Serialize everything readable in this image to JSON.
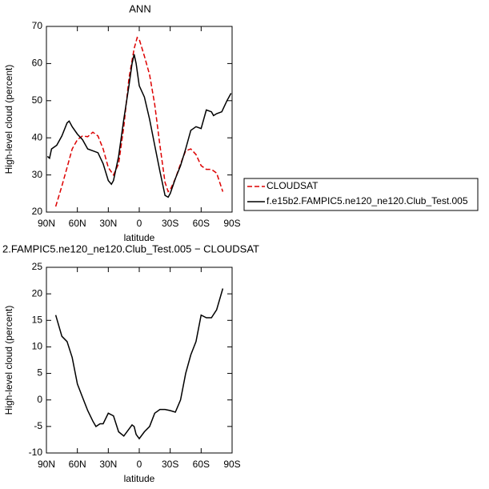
{
  "chart_data": [
    {
      "type": "line",
      "title": "ANN",
      "x_label": "latitude",
      "y_label": "High-level cloud (percent)",
      "xlim": [
        90,
        -90
      ],
      "xticks": [
        {
          "value": 90,
          "label": "90N"
        },
        {
          "value": 60,
          "label": "60N"
        },
        {
          "value": 30,
          "label": "30N"
        },
        0,
        {
          "value": -30,
          "label": "30S"
        },
        {
          "value": -60,
          "label": "60S"
        },
        {
          "value": -90,
          "label": "90S"
        }
      ],
      "ylim": [
        20,
        70
      ],
      "yticks": [
        20,
        30,
        40,
        50,
        60,
        70
      ],
      "legend": "right",
      "series": [
        {
          "name": "CLOUDSAT",
          "color": "#dd0000",
          "dash": true,
          "x": [
            81,
            75,
            70,
            65,
            60,
            55,
            50,
            45,
            40,
            35,
            30,
            25,
            20,
            15,
            10,
            5,
            2,
            0,
            -5,
            -10,
            -15,
            -20,
            -25,
            -28,
            -30,
            -35,
            -40,
            -45,
            -50,
            -55,
            -60,
            -65,
            -70,
            -75,
            -81
          ],
          "values": [
            21.5,
            27,
            32,
            37,
            39.5,
            40.5,
            40.3,
            41.5,
            40.5,
            37,
            32,
            30,
            33,
            43,
            56,
            64,
            67,
            66.5,
            62,
            57,
            49,
            38,
            28,
            25.5,
            26,
            29,
            33,
            36.5,
            37,
            35.5,
            32.5,
            31.5,
            31.5,
            30.5,
            25.5
          ]
        },
        {
          "name": "f.e15b2.FAMPIC5.ne120_ne120.Club_Test.005",
          "color": "#000000",
          "dash": false,
          "x": [
            89,
            87,
            85,
            80,
            75,
            70,
            68,
            65,
            60,
            55,
            50,
            45,
            40,
            35,
            30,
            27,
            25,
            20,
            15,
            10,
            7,
            5,
            3,
            0,
            -5,
            -10,
            -15,
            -20,
            -25,
            -28,
            -30,
            -35,
            -40,
            -45,
            -50,
            -55,
            -60,
            -65,
            -70,
            -72,
            -75,
            -80,
            -85,
            -89
          ],
          "values": [
            35,
            34.5,
            37,
            38,
            40.5,
            44,
            44.5,
            43,
            41,
            39.5,
            37,
            36.5,
            36,
            33,
            28.5,
            27.5,
            28.5,
            35,
            45,
            54,
            60,
            62.5,
            60,
            54,
            51,
            45,
            38,
            31,
            24.5,
            24,
            25,
            29,
            32.5,
            37,
            42,
            43,
            42.5,
            47.5,
            47,
            46,
            46.5,
            47,
            50,
            52
          ]
        }
      ]
    },
    {
      "type": "line",
      "title": "2.FAMPIC5.ne120_ne120.Club_Test.005 − CLOUDSAT",
      "x_label": "latitude",
      "y_label": "High-level cloud (percent)",
      "xlim": [
        90,
        -90
      ],
      "xticks": [
        {
          "value": 90,
          "label": "90N"
        },
        {
          "value": 60,
          "label": "60N"
        },
        {
          "value": 30,
          "label": "30N"
        },
        0,
        {
          "value": -30,
          "label": "30S"
        },
        {
          "value": -60,
          "label": "60S"
        },
        {
          "value": -90,
          "label": "90S"
        }
      ],
      "ylim": [
        -10,
        25
      ],
      "yticks": [
        -10,
        -5,
        0,
        5,
        10,
        15,
        20,
        25
      ],
      "color": "#000000",
      "x": [
        81,
        75,
        70,
        65,
        60,
        55,
        50,
        45,
        42,
        38,
        35,
        30,
        25,
        20,
        15,
        10,
        7,
        5,
        3,
        0,
        -5,
        -10,
        -15,
        -20,
        -25,
        -30,
        -35,
        -40,
        -45,
        -50,
        -55,
        -60,
        -65,
        -70,
        -75,
        -81
      ],
      "values": [
        16,
        12,
        11,
        8,
        3,
        0.5,
        -2,
        -4,
        -5,
        -4.5,
        -4.5,
        -2.5,
        -3,
        -6,
        -6.8,
        -5.5,
        -4.7,
        -5,
        -6.5,
        -7.3,
        -6,
        -5,
        -2.5,
        -1.8,
        -1.8,
        -2,
        -2.3,
        0,
        5,
        8.5,
        11,
        16,
        15.5,
        15.5,
        17,
        21
      ]
    }
  ]
}
